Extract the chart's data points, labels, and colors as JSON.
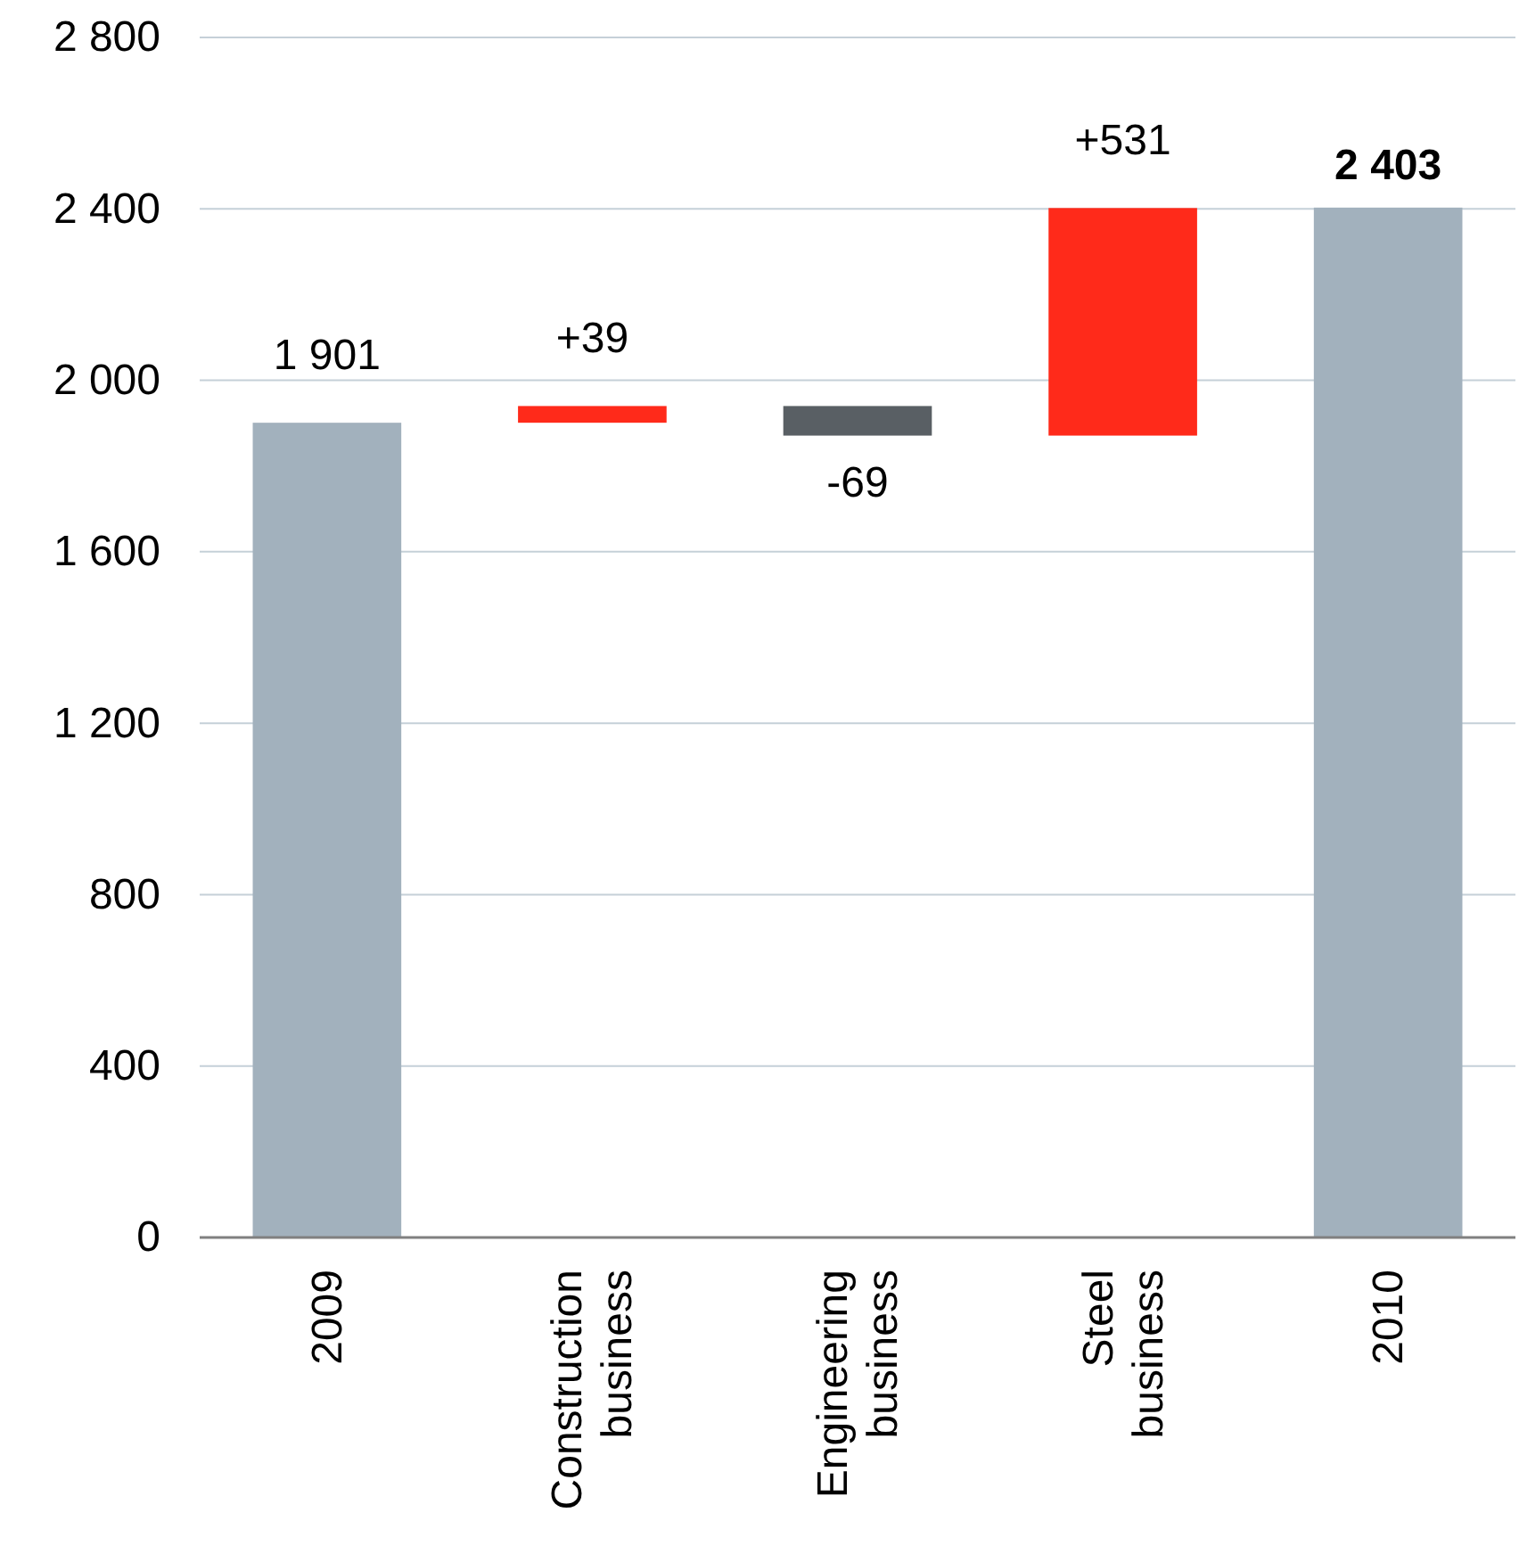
{
  "chart_data": {
    "type": "bar",
    "categories": [
      "2009",
      "Construction business",
      "Engineering business",
      "Steel business",
      "2010"
    ],
    "values": [
      1901,
      39,
      -69,
      531,
      2403
    ],
    "base": [
      0,
      1901,
      1940,
      1871,
      0
    ],
    "colors": [
      "#a2b1bd",
      "#ff2a1a",
      "#595f64",
      "#ff2a1a",
      "#a2b1bd"
    ],
    "value_labels": [
      "1 901",
      "+39",
      "-69",
      "+531",
      "2 403"
    ],
    "ylim": [
      0,
      2800
    ],
    "yticks": [
      {
        "value": 0,
        "label": "0"
      },
      {
        "value": 400,
        "label": "400"
      },
      {
        "value": 800,
        "label": "800"
      },
      {
        "value": 1200,
        "label": "1 200"
      },
      {
        "value": 1600,
        "label": "1 600"
      },
      {
        "value": 2000,
        "label": "2 000"
      },
      {
        "value": 2400,
        "label": "2 400"
      },
      {
        "value": 2800,
        "label": "2 800"
      }
    ],
    "grid": "y"
  }
}
